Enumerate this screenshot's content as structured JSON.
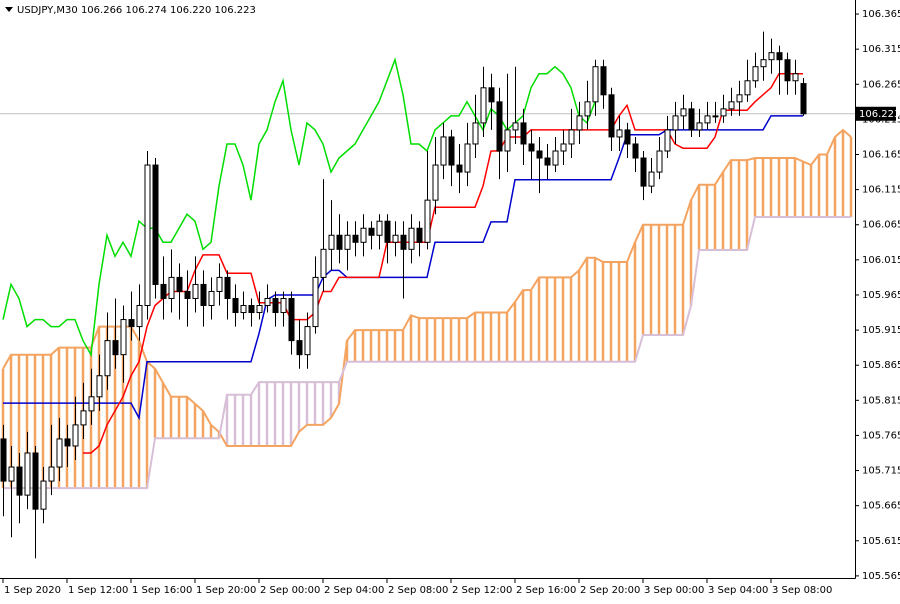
{
  "chart_data": {
    "type": "candlestick",
    "title": "USDJPY,M30  106.266 106.274 106.220 106.223",
    "xlim": [
      -0.375,
      106.5
    ],
    "xticks": [
      {
        "value": 0,
        "label": "1 Sep 2020"
      },
      {
        "value": 8,
        "label": "1 Sep 12:00"
      },
      {
        "value": 16,
        "label": "1 Sep 16:00"
      },
      {
        "value": 24,
        "label": "1 Sep 20:00"
      },
      {
        "value": 32,
        "label": "2 Sep 00:00"
      },
      {
        "value": 40,
        "label": "2 Sep 04:00"
      },
      {
        "value": 48,
        "label": "2 Sep 08:00"
      },
      {
        "value": 56,
        "label": "2 Sep 12:00"
      },
      {
        "value": 64,
        "label": "2 Sep 16:00"
      },
      {
        "value": 72,
        "label": "2 Sep 20:00"
      },
      {
        "value": 80,
        "label": "3 Sep 00:00"
      },
      {
        "value": 88,
        "label": "3 Sep 04:00"
      },
      {
        "value": 96,
        "label": "3 Sep 08:00"
      }
    ],
    "ylim": [
      105.562,
      106.385
    ],
    "yticks": [
      105.565,
      105.615,
      105.665,
      105.715,
      105.765,
      105.815,
      105.865,
      105.915,
      105.965,
      106.015,
      106.065,
      106.115,
      106.165,
      106.215,
      106.265,
      106.315,
      106.365
    ],
    "price_line": 106.223,
    "price_line_color": "#c0c0c0",
    "up_color": "#ffffff",
    "down_color": "#000000",
    "ohlc": [
      [
        105.76,
        105.78,
        105.65,
        105.7
      ],
      [
        105.7,
        105.75,
        105.62,
        105.72
      ],
      [
        105.72,
        105.74,
        105.64,
        105.68
      ],
      [
        105.68,
        105.77,
        105.66,
        105.74
      ],
      [
        105.74,
        105.75,
        105.59,
        105.66
      ],
      [
        105.66,
        105.72,
        105.64,
        105.7
      ],
      [
        105.7,
        105.78,
        105.68,
        105.72
      ],
      [
        105.72,
        105.79,
        105.7,
        105.76
      ],
      [
        105.76,
        105.78,
        105.72,
        105.75
      ],
      [
        105.75,
        105.82,
        105.73,
        105.78
      ],
      [
        105.78,
        105.84,
        105.76,
        105.8
      ],
      [
        105.8,
        105.86,
        105.78,
        105.82
      ],
      [
        105.82,
        105.88,
        105.8,
        105.85
      ],
      [
        105.85,
        105.94,
        105.83,
        105.9
      ],
      [
        105.9,
        105.96,
        105.86,
        105.88
      ],
      [
        105.88,
        105.95,
        105.84,
        105.93
      ],
      [
        105.93,
        105.97,
        105.9,
        105.92
      ],
      [
        105.92,
        105.98,
        105.9,
        105.95
      ],
      [
        105.95,
        106.17,
        105.93,
        106.15
      ],
      [
        106.15,
        106.16,
        105.96,
        105.98
      ],
      [
        105.98,
        106.02,
        105.93,
        105.96
      ],
      [
        105.96,
        106.03,
        105.94,
        105.99
      ],
      [
        105.99,
        106.01,
        105.93,
        105.97
      ],
      [
        105.97,
        106.0,
        105.92,
        105.96
      ],
      [
        105.96,
        106.02,
        105.94,
        105.98
      ],
      [
        105.98,
        106.0,
        105.92,
        105.95
      ],
      [
        105.95,
        105.99,
        105.93,
        105.97
      ],
      [
        105.97,
        106.01,
        105.95,
        105.99
      ],
      [
        105.99,
        106.0,
        105.93,
        105.96
      ],
      [
        105.96,
        105.98,
        105.92,
        105.94
      ],
      [
        105.94,
        105.97,
        105.93,
        105.95
      ],
      [
        105.95,
        105.96,
        105.92,
        105.94
      ],
      [
        105.94,
        105.97,
        105.93,
        105.95
      ],
      [
        105.95,
        105.98,
        105.94,
        105.96
      ],
      [
        105.96,
        105.97,
        105.92,
        105.94
      ],
      [
        105.94,
        105.97,
        105.92,
        105.96
      ],
      [
        105.96,
        105.97,
        105.88,
        105.9
      ],
      [
        105.9,
        105.93,
        105.86,
        105.88
      ],
      [
        105.88,
        105.94,
        105.86,
        105.92
      ],
      [
        105.92,
        106.02,
        105.91,
        105.99
      ],
      [
        105.99,
        106.13,
        105.97,
        106.03
      ],
      [
        106.03,
        106.1,
        106.0,
        106.05
      ],
      [
        106.05,
        106.08,
        106.01,
        106.03
      ],
      [
        106.03,
        106.07,
        106.0,
        106.05
      ],
      [
        106.05,
        106.07,
        106.02,
        106.04
      ],
      [
        106.04,
        106.08,
        106.02,
        106.06
      ],
      [
        106.06,
        106.07,
        106.03,
        106.05
      ],
      [
        106.05,
        106.08,
        106.03,
        106.07
      ],
      [
        106.07,
        106.08,
        106.01,
        106.04
      ],
      [
        106.04,
        106.07,
        106.02,
        106.05
      ],
      [
        106.05,
        106.07,
        105.96,
        106.03
      ],
      [
        106.03,
        106.08,
        106.01,
        106.06
      ],
      [
        106.06,
        106.07,
        106.02,
        106.04
      ],
      [
        106.04,
        106.17,
        106.03,
        106.1
      ],
      [
        106.1,
        106.19,
        106.08,
        106.15
      ],
      [
        106.15,
        106.21,
        106.13,
        106.19
      ],
      [
        106.19,
        106.2,
        106.12,
        106.15
      ],
      [
        106.15,
        106.18,
        106.11,
        106.14
      ],
      [
        106.14,
        106.21,
        106.12,
        106.18
      ],
      [
        106.18,
        106.25,
        106.16,
        106.21
      ],
      [
        106.21,
        106.29,
        106.19,
        106.26
      ],
      [
        106.26,
        106.28,
        106.2,
        106.24
      ],
      [
        106.24,
        106.26,
        106.13,
        106.17
      ],
      [
        106.17,
        106.28,
        106.14,
        106.2
      ],
      [
        106.2,
        106.29,
        106.18,
        106.21
      ],
      [
        106.21,
        106.23,
        106.15,
        106.18
      ],
      [
        106.18,
        106.2,
        106.13,
        106.17
      ],
      [
        106.17,
        106.19,
        106.11,
        106.16
      ],
      [
        106.16,
        106.18,
        106.13,
        106.15
      ],
      [
        106.15,
        106.19,
        106.14,
        106.17
      ],
      [
        106.17,
        106.2,
        106.15,
        106.18
      ],
      [
        106.18,
        106.23,
        106.16,
        106.2
      ],
      [
        106.2,
        106.24,
        106.18,
        106.22
      ],
      [
        106.22,
        106.27,
        106.2,
        106.24
      ],
      [
        106.24,
        106.3,
        106.22,
        106.29
      ],
      [
        106.29,
        106.3,
        106.23,
        106.25
      ],
      [
        106.25,
        106.26,
        106.17,
        106.19
      ],
      [
        106.19,
        106.22,
        106.17,
        106.2
      ],
      [
        106.2,
        106.21,
        106.16,
        106.18
      ],
      [
        106.18,
        106.19,
        106.14,
        106.16
      ],
      [
        106.16,
        106.17,
        106.1,
        106.12
      ],
      [
        106.12,
        106.16,
        106.11,
        106.14
      ],
      [
        106.14,
        106.19,
        106.13,
        106.17
      ],
      [
        106.17,
        106.22,
        106.16,
        106.2
      ],
      [
        106.2,
        106.24,
        106.18,
        106.22
      ],
      [
        106.22,
        106.25,
        106.2,
        106.23
      ],
      [
        106.23,
        106.24,
        106.19,
        106.2
      ],
      [
        106.2,
        106.23,
        106.19,
        106.21
      ],
      [
        106.21,
        106.24,
        106.2,
        106.22
      ],
      [
        106.22,
        106.24,
        106.21,
        106.22
      ],
      [
        106.22,
        106.25,
        106.21,
        106.23
      ],
      [
        106.23,
        106.26,
        106.22,
        106.24
      ],
      [
        106.24,
        106.27,
        106.22,
        106.25
      ],
      [
        106.25,
        106.3,
        106.24,
        106.27
      ],
      [
        106.27,
        106.31,
        106.26,
        106.29
      ],
      [
        106.29,
        106.34,
        106.27,
        106.3
      ],
      [
        106.3,
        106.33,
        106.28,
        106.31
      ],
      [
        106.31,
        106.32,
        106.25,
        106.3
      ],
      [
        106.3,
        106.31,
        106.25,
        106.27
      ],
      [
        106.27,
        106.3,
        106.25,
        106.28
      ],
      [
        106.266,
        106.274,
        106.22,
        106.223
      ]
    ],
    "cloud": {
      "up_color": "#f4a460",
      "down_color": "#d8bfd8",
      "span_a": [
        105.86,
        105.88,
        105.88,
        105.88,
        105.88,
        105.88,
        105.88,
        105.89,
        105.89,
        105.89,
        105.89,
        105.89,
        105.92,
        105.92,
        105.92,
        105.92,
        105.92,
        105.9,
        105.87,
        105.86,
        105.84,
        105.82,
        105.82,
        105.82,
        105.81,
        105.8,
        105.78,
        105.77,
        105.75,
        105.75,
        105.75,
        105.75,
        105.75,
        105.75,
        105.75,
        105.75,
        105.75,
        105.77,
        105.78,
        105.78,
        105.78,
        105.79,
        105.81,
        105.9,
        105.915,
        105.915,
        105.915,
        105.915,
        105.915,
        105.915,
        105.915,
        105.936,
        105.932,
        105.932,
        105.932,
        105.932,
        105.932,
        105.932,
        105.932,
        105.94,
        105.94,
        105.94,
        105.94,
        105.94,
        105.955,
        105.972,
        105.972,
        105.99,
        105.99,
        105.99,
        105.99,
        105.99,
        106.0,
        106.018,
        106.018,
        106.012,
        106.012,
        106.012,
        106.012,
        106.04,
        106.065,
        106.065,
        106.065,
        106.065,
        106.065,
        106.065,
        106.1,
        106.122,
        106.122,
        106.122,
        106.14,
        106.157,
        106.157,
        106.157,
        106.16,
        106.16,
        106.16,
        106.16,
        106.16,
        106.16,
        106.155,
        106.15,
        106.165,
        106.165,
        106.19,
        106.2,
        106.19
      ],
      "span_b": [
        105.69,
        105.69,
        105.69,
        105.69,
        105.69,
        105.69,
        105.69,
        105.69,
        105.69,
        105.69,
        105.69,
        105.69,
        105.69,
        105.69,
        105.69,
        105.69,
        105.69,
        105.69,
        105.69,
        105.761,
        105.761,
        105.761,
        105.761,
        105.761,
        105.761,
        105.761,
        105.761,
        105.761,
        105.823,
        105.823,
        105.823,
        105.823,
        105.841,
        105.841,
        105.841,
        105.841,
        105.841,
        105.841,
        105.841,
        105.841,
        105.841,
        105.841,
        105.841,
        105.87,
        105.87,
        105.87,
        105.87,
        105.87,
        105.87,
        105.87,
        105.87,
        105.87,
        105.87,
        105.87,
        105.87,
        105.87,
        105.87,
        105.87,
        105.87,
        105.87,
        105.87,
        105.87,
        105.87,
        105.87,
        105.87,
        105.87,
        105.87,
        105.87,
        105.87,
        105.87,
        105.87,
        105.87,
        105.87,
        105.87,
        105.87,
        105.87,
        105.87,
        105.87,
        105.87,
        105.87,
        105.908,
        105.908,
        105.908,
        105.908,
        105.908,
        105.908,
        105.95,
        106.029,
        106.029,
        106.029,
        106.029,
        106.029,
        106.029,
        106.029,
        106.076,
        106.076,
        106.076,
        106.076,
        106.076,
        106.076,
        106.076,
        106.076,
        106.076,
        106.076,
        106.076,
        106.076,
        106.076
      ]
    },
    "lines": [
      {
        "color": "#00dd00",
        "values": [
          105.93,
          105.98,
          105.96,
          105.92,
          105.93,
          105.93,
          105.92,
          105.92,
          105.93,
          105.93,
          105.9,
          105.88,
          105.98,
          106.05,
          106.02,
          106.04,
          106.02,
          106.07,
          106.06,
          106.06,
          106.04,
          106.04,
          106.06,
          106.08,
          106.07,
          106.03,
          106.04,
          106.12,
          106.18,
          106.18,
          106.15,
          106.1,
          106.18,
          106.2,
          106.24,
          106.27,
          106.2,
          106.15,
          106.21,
          106.2,
          106.18,
          106.14,
          106.16,
          106.17,
          106.18,
          106.2,
          106.22,
          106.24,
          106.27,
          106.3,
          106.25,
          106.18,
          106.18,
          106.17,
          106.2,
          106.21,
          106.22,
          106.22,
          106.24,
          106.22,
          106.2,
          106.23,
          106.22,
          106.2,
          106.21,
          106.22,
          106.26,
          106.28,
          106.28,
          106.29,
          106.28,
          106.26,
          106.22,
          106.21,
          106.24
        ]
      },
      {
        "color": "#0000cd",
        "values": [
          105.811,
          105.811,
          105.811,
          105.811,
          105.811,
          105.811,
          105.811,
          105.811,
          105.811,
          105.811,
          105.811,
          105.811,
          105.811,
          105.811,
          105.811,
          105.811,
          105.811,
          105.79,
          105.87,
          105.87,
          105.87,
          105.87,
          105.87,
          105.87,
          105.87,
          105.87,
          105.87,
          105.87,
          105.87,
          105.87,
          105.87,
          105.87,
          105.91,
          105.958,
          105.965,
          105.965,
          105.965,
          105.965,
          105.965,
          105.965,
          105.99,
          106.0,
          106.0,
          105.99,
          105.99,
          105.99,
          105.99,
          105.99,
          105.99,
          105.99,
          105.99,
          105.99,
          105.99,
          105.99,
          106.04,
          106.04,
          106.04,
          106.04,
          106.04,
          106.04,
          106.04,
          106.069,
          106.069,
          106.069,
          106.129,
          106.129,
          106.129,
          106.129,
          106.129,
          106.129,
          106.129,
          106.129,
          106.129,
          106.129,
          106.129,
          106.129,
          106.129,
          106.16,
          106.193,
          106.193,
          106.193,
          106.193,
          106.193,
          106.2,
          106.2,
          106.2,
          106.2,
          106.2,
          106.2,
          106.2,
          106.2,
          106.2,
          106.2,
          106.2,
          106.2,
          106.2,
          106.22,
          106.22,
          106.22,
          106.22,
          106.22
        ]
      },
      {
        "color": "#ff0000",
        "values": [
          null,
          null,
          null,
          null,
          null,
          null,
          null,
          null,
          null,
          null,
          105.74,
          105.74,
          105.75,
          105.78,
          105.8,
          105.82,
          105.85,
          105.87,
          105.92,
          105.95,
          105.96,
          105.97,
          105.97,
          105.97,
          106.0,
          106.022,
          106.022,
          106.022,
          105.996,
          105.996,
          105.996,
          105.996,
          105.954,
          105.954,
          105.954,
          105.954,
          105.93,
          105.93,
          105.93,
          105.94,
          105.97,
          105.97,
          105.99,
          105.99,
          105.99,
          105.99,
          105.99,
          105.99,
          106.04,
          106.04,
          106.04,
          106.04,
          106.04,
          106.04,
          106.09,
          106.09,
          106.09,
          106.09,
          106.09,
          106.09,
          106.12,
          106.17,
          106.17,
          106.19,
          106.19,
          106.19,
          106.2,
          106.2,
          106.2,
          106.2,
          106.2,
          106.2,
          106.2,
          106.2,
          106.2,
          106.2,
          106.2,
          106.22,
          106.235,
          106.2,
          106.2,
          106.2,
          106.2,
          106.2,
          106.18,
          106.174,
          106.174,
          106.174,
          106.174,
          106.19,
          106.228,
          106.228,
          106.228,
          106.228,
          106.24,
          106.25,
          106.26,
          106.28,
          106.28,
          106.28,
          106.28
        ]
      }
    ]
  }
}
